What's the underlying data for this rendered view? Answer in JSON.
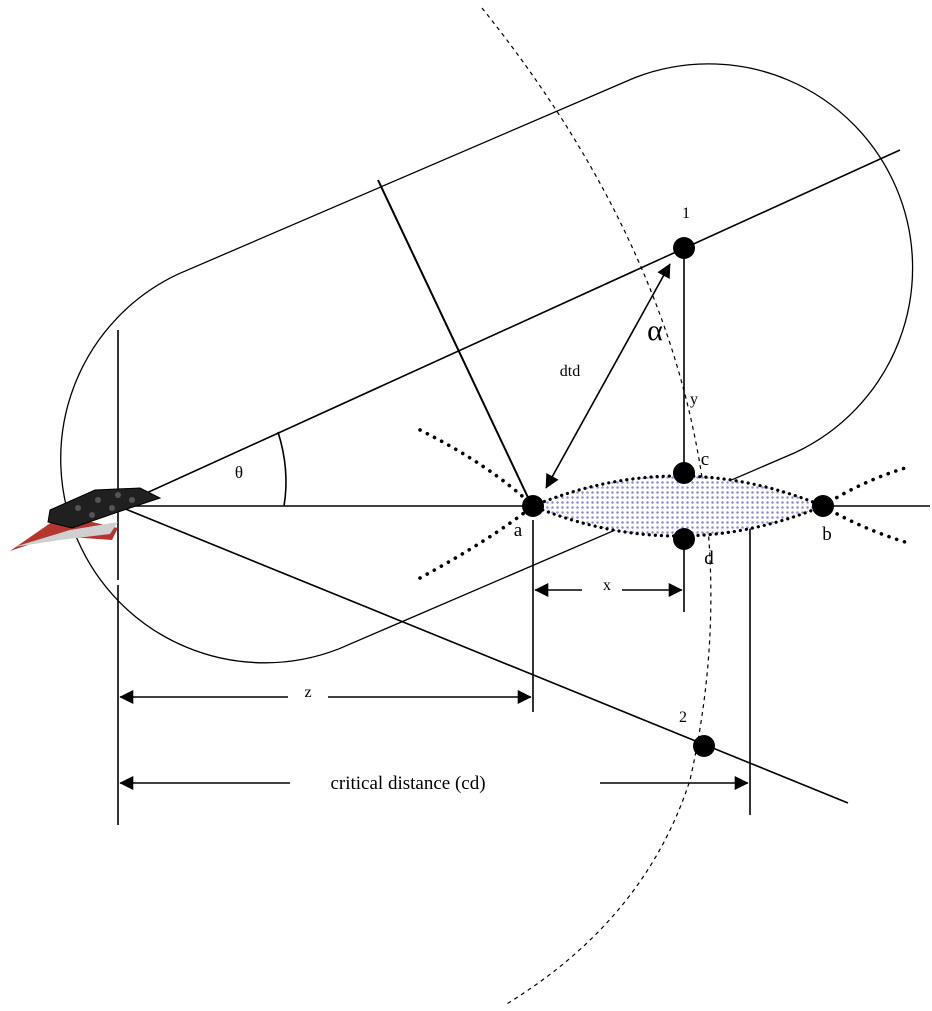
{
  "labels": {
    "point_1": "1",
    "point_2": "2",
    "point_a": "a",
    "point_b": "b",
    "point_c": "c",
    "point_d": "d",
    "alpha": "α",
    "theta": "θ",
    "dtd": "dtd",
    "x": "x",
    "y": "y",
    "z": "z",
    "critical_distance": "critical distance (cd)"
  },
  "colors": {
    "ink": "#000000",
    "overlap_fill": "#b8b8ec",
    "vessel_hull": "#202020",
    "vessel_keel": "#b5352f"
  },
  "icons": {
    "vessel": "vessel-icon"
  }
}
